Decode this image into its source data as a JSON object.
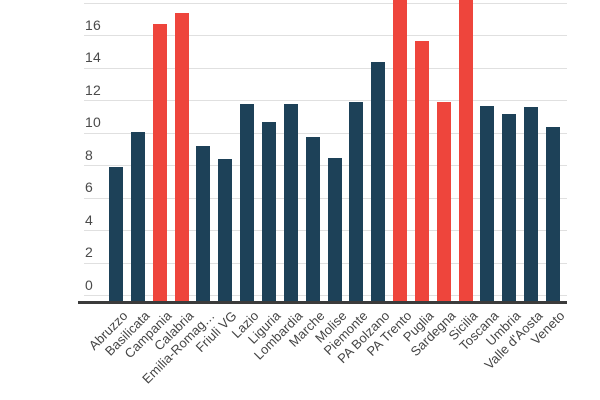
{
  "chart_data": {
    "type": "bar",
    "categories": [
      "Abruzzo",
      "Basilicata",
      "Campania",
      "Calabria",
      "Emilia-Romag…",
      "Friuli VG",
      "Lazio",
      "Liguria",
      "Lombardia",
      "Marche",
      "Molise",
      "Piemonte",
      "PA Bolzano",
      "PA Trento",
      "Puglia",
      "Sardegna",
      "Sicilia",
      "Toscana",
      "Umbria",
      "Valle d'Aosta",
      "Veneto"
    ],
    "bars": [
      {
        "label": "Abruzzo",
        "value": 7.9,
        "color": "navy",
        "clipped": false
      },
      {
        "label": "Basilicata",
        "value": 10.1,
        "color": "navy",
        "clipped": false
      },
      {
        "label": "Campania",
        "value": 16.7,
        "color": "red",
        "clipped": false
      },
      {
        "label": "Calabria",
        "value": 17.4,
        "color": "red",
        "clipped": false
      },
      {
        "label": "Emilia-Romag…",
        "value": 9.2,
        "color": "navy",
        "clipped": false
      },
      {
        "label": "Friuli VG",
        "value": 8.4,
        "color": "navy",
        "clipped": false
      },
      {
        "label": "Lazio",
        "value": 11.8,
        "color": "navy",
        "clipped": false
      },
      {
        "label": "Liguria",
        "value": 10.7,
        "color": "navy",
        "clipped": false
      },
      {
        "label": "Lombardia",
        "value": 11.8,
        "color": "navy",
        "clipped": false
      },
      {
        "label": "Marche",
        "value": 9.8,
        "color": "navy",
        "clipped": false
      },
      {
        "label": "Molise",
        "value": 8.5,
        "color": "navy",
        "clipped": false
      },
      {
        "label": "Piemonte",
        "value": 11.9,
        "color": "navy",
        "clipped": false
      },
      {
        "label": "PA Bolzano",
        "value": 14.4,
        "color": "navy",
        "clipped": false
      },
      {
        "label": "PA Trento",
        "value": null,
        "color": "red",
        "clipped": true
      },
      {
        "label": "Puglia",
        "value": 15.7,
        "color": "red",
        "clipped": false
      },
      {
        "label": "Sardegna",
        "value": 11.9,
        "color": "red",
        "clipped": false
      },
      {
        "label": "Sicilia",
        "value": null,
        "color": "red",
        "clipped": true
      },
      {
        "label": "Toscana",
        "value": 11.7,
        "color": "navy",
        "clipped": false
      },
      {
        "label": "Umbria",
        "value": 11.2,
        "color": "navy",
        "clipped": false
      },
      {
        "label": "Valle d'Aosta",
        "value": 11.6,
        "color": "navy",
        "clipped": false
      },
      {
        "label": "Veneto",
        "value": 10.4,
        "color": "navy",
        "clipped": false
      }
    ],
    "y_axis": {
      "tick_labels": [
        "0",
        "2",
        "4",
        "6",
        "8",
        "10",
        "12",
        "14",
        "16"
      ],
      "top_gridline_value": 18,
      "visible_max": 18.2,
      "grid": "on"
    },
    "layout": {
      "x_label_rotation_deg": -45,
      "legend": "none",
      "note": "chart cropped at top; PA Trento and Sicilia bars exceed visible area"
    },
    "colors": {
      "navy": "#1d4158",
      "red": "#ee453c",
      "gridline": "#e0e0e0",
      "axis_line": "#3b3b3b",
      "tick_label": "#4a4a4a",
      "x_label": "#444444"
    }
  }
}
